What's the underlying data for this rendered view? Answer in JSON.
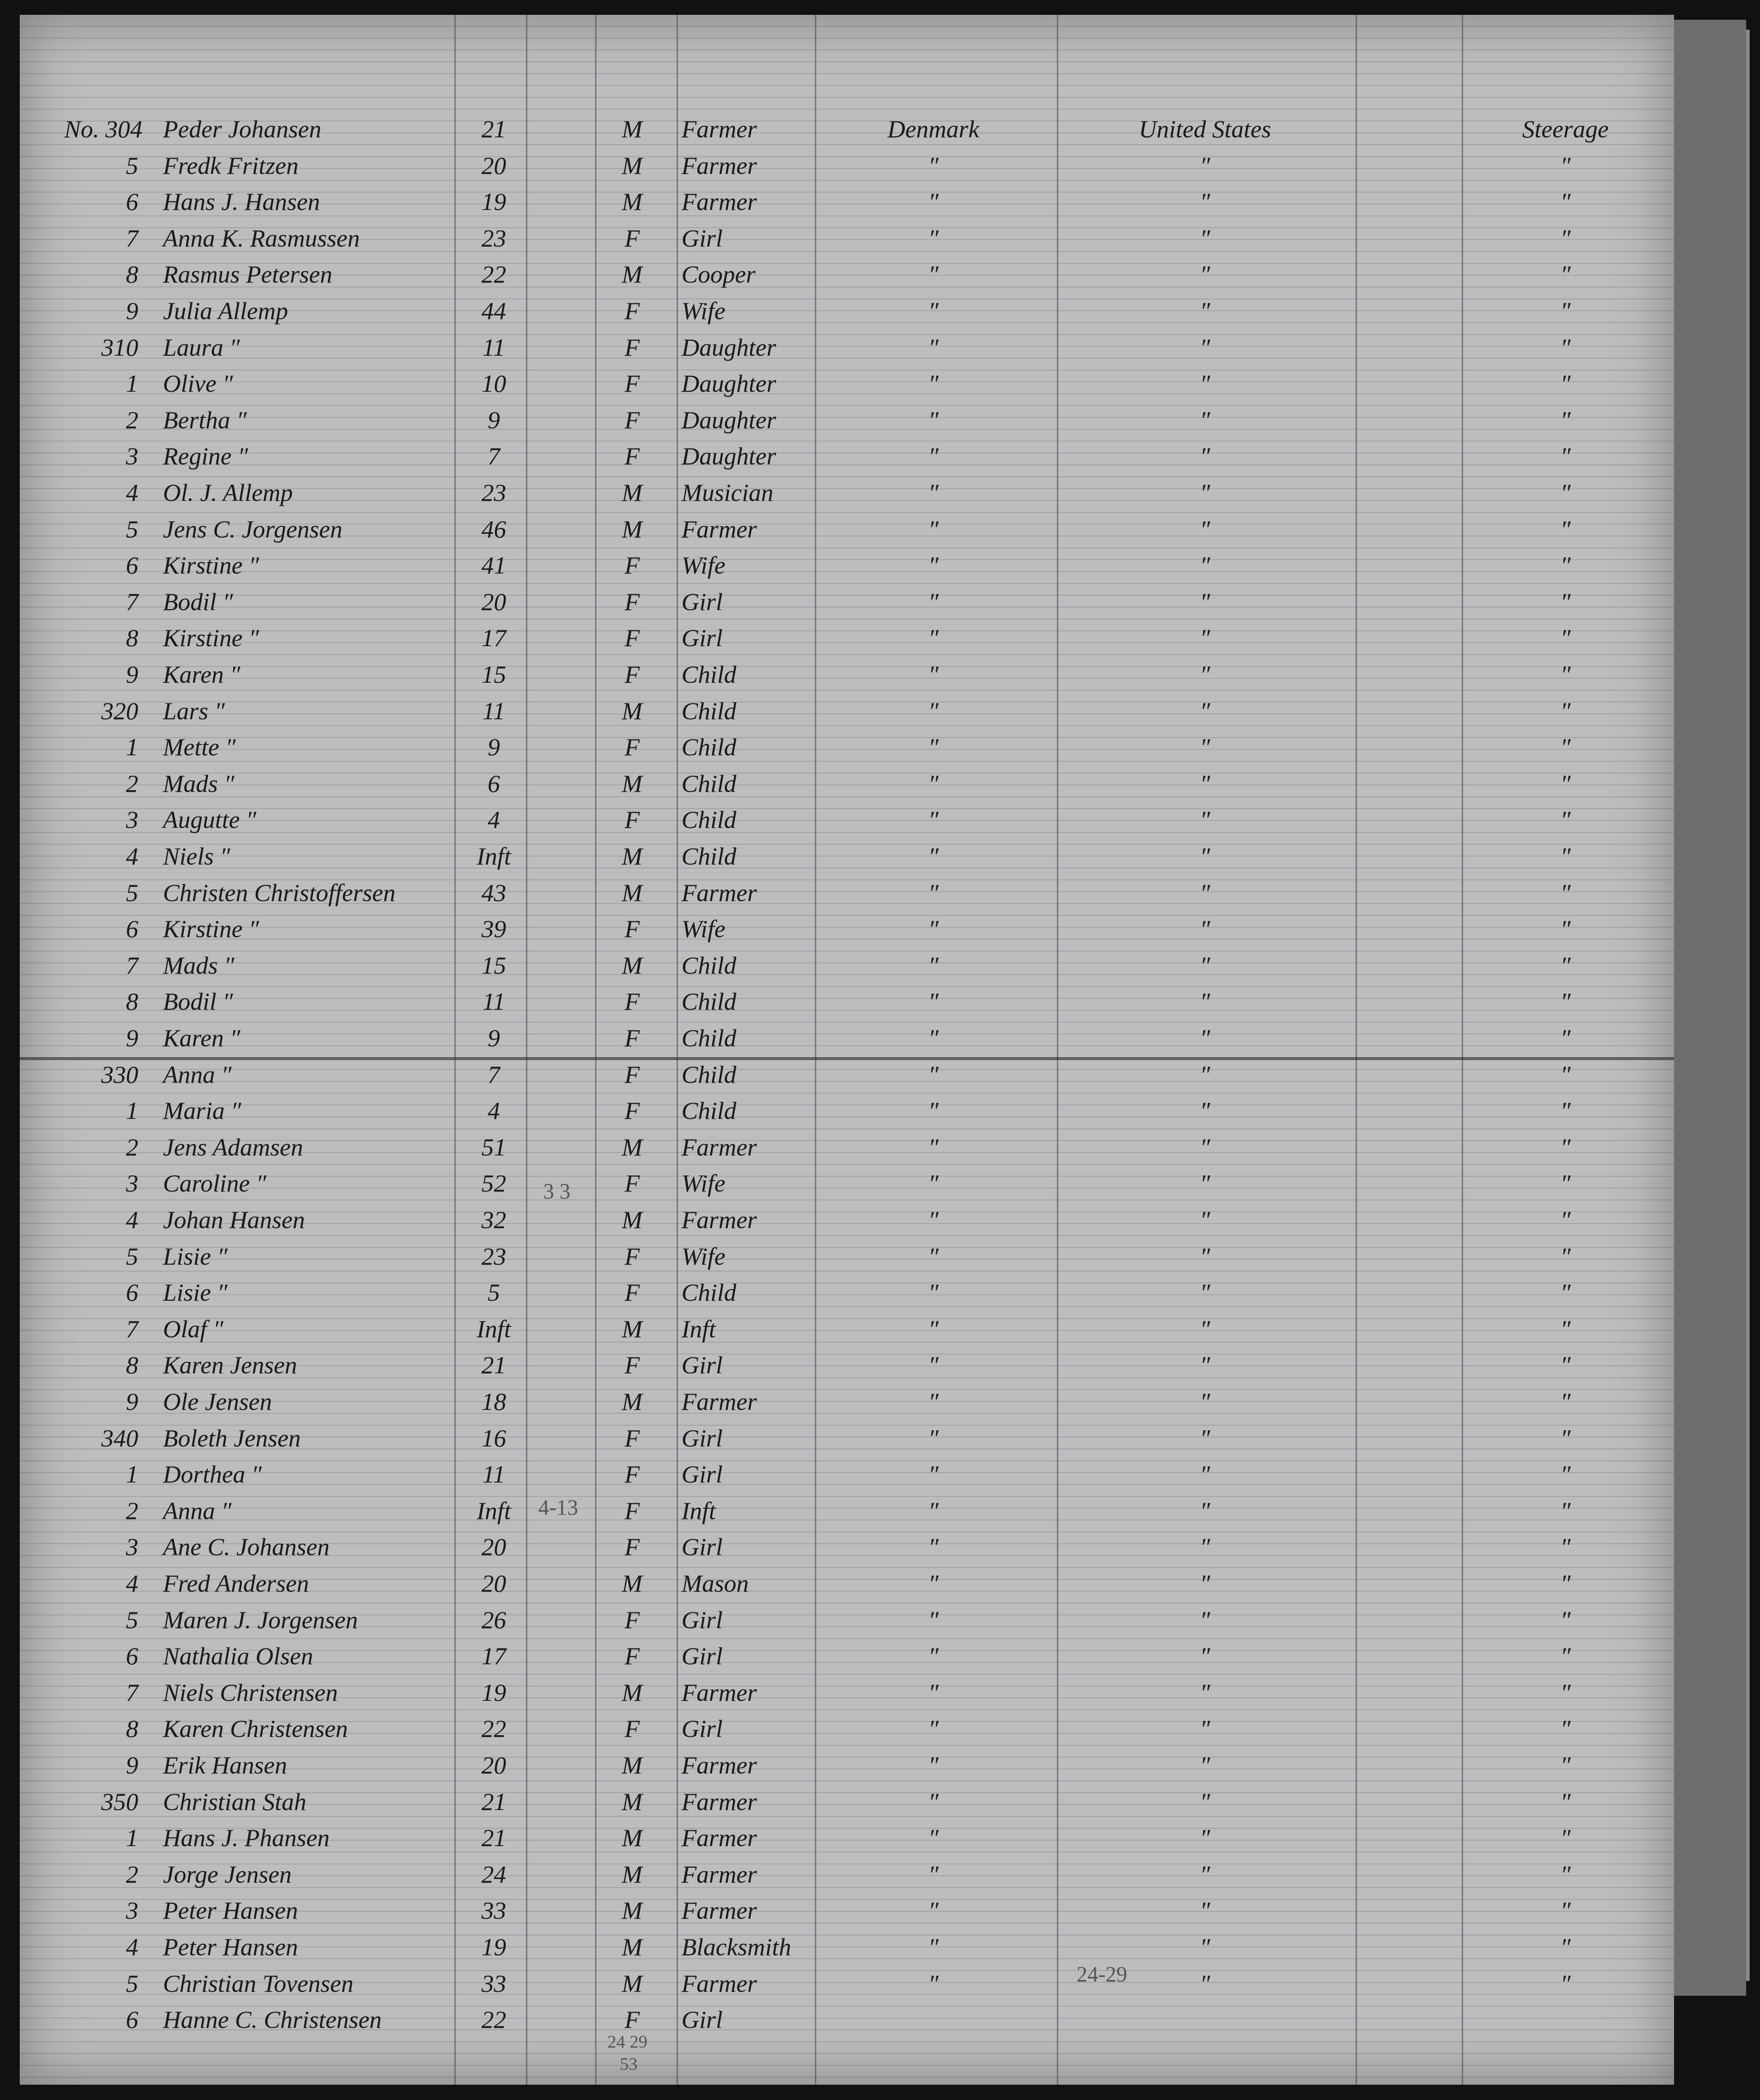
{
  "manifest": {
    "rows": [
      {
        "no": "No. 304",
        "name": "Peder Johansen",
        "age": "21",
        "sex": "M",
        "occupation": "Farmer",
        "country": "Denmark",
        "destination": "United States",
        "passage": "Steerage"
      },
      {
        "no": "5",
        "name": "Fredk Fritzen",
        "age": "20",
        "sex": "M",
        "occupation": "Farmer",
        "country": "″",
        "destination": "″",
        "passage": "″"
      },
      {
        "no": "6",
        "name": "Hans J. Hansen",
        "age": "19",
        "sex": "M",
        "occupation": "Farmer",
        "country": "″",
        "destination": "″",
        "passage": "″"
      },
      {
        "no": "7",
        "name": "Anna K. Rasmussen",
        "age": "23",
        "sex": "F",
        "occupation": "Girl",
        "country": "″",
        "destination": "″",
        "passage": "″"
      },
      {
        "no": "8",
        "name": "Rasmus Petersen",
        "age": "22",
        "sex": "M",
        "occupation": "Cooper",
        "country": "″",
        "destination": "″",
        "passage": "″"
      },
      {
        "no": "9",
        "name": "Julia Allemp",
        "age": "44",
        "sex": "F",
        "occupation": "Wife",
        "country": "″",
        "destination": "″",
        "passage": "″"
      },
      {
        "no": "310",
        "name": "Laura ″",
        "age": "11",
        "sex": "F",
        "occupation": "Daughter",
        "country": "″",
        "destination": "″",
        "passage": "″"
      },
      {
        "no": "1",
        "name": "Olive ″",
        "age": "10",
        "sex": "F",
        "occupation": "Daughter",
        "country": "″",
        "destination": "″",
        "passage": "″"
      },
      {
        "no": "2",
        "name": "Bertha ″",
        "age": "9",
        "sex": "F",
        "occupation": "Daughter",
        "country": "″",
        "destination": "″",
        "passage": "″"
      },
      {
        "no": "3",
        "name": "Regine ″",
        "age": "7",
        "sex": "F",
        "occupation": "Daughter",
        "country": "″",
        "destination": "″",
        "passage": "″"
      },
      {
        "no": "4",
        "name": "Ol. J. Allemp",
        "age": "23",
        "sex": "M",
        "occupation": "Musician",
        "country": "″",
        "destination": "″",
        "passage": "″"
      },
      {
        "no": "5",
        "name": "Jens C. Jorgensen",
        "age": "46",
        "sex": "M",
        "occupation": "Farmer",
        "country": "″",
        "destination": "″",
        "passage": "″"
      },
      {
        "no": "6",
        "name": "Kirstine ″",
        "age": "41",
        "sex": "F",
        "occupation": "Wife",
        "country": "″",
        "destination": "″",
        "passage": "″"
      },
      {
        "no": "7",
        "name": "Bodil ″",
        "age": "20",
        "sex": "F",
        "occupation": "Girl",
        "country": "″",
        "destination": "″",
        "passage": "″"
      },
      {
        "no": "8",
        "name": "Kirstine ″",
        "age": "17",
        "sex": "F",
        "occupation": "Girl",
        "country": "″",
        "destination": "″",
        "passage": "″"
      },
      {
        "no": "9",
        "name": "Karen ″",
        "age": "15",
        "sex": "F",
        "occupation": "Child",
        "country": "″",
        "destination": "″",
        "passage": "″"
      },
      {
        "no": "320",
        "name": "Lars ″",
        "age": "11",
        "sex": "M",
        "occupation": "Child",
        "country": "″",
        "destination": "″",
        "passage": "″"
      },
      {
        "no": "1",
        "name": "Mette ″",
        "age": "9",
        "sex": "F",
        "occupation": "Child",
        "country": "″",
        "destination": "″",
        "passage": "″"
      },
      {
        "no": "2",
        "name": "Mads ″",
        "age": "6",
        "sex": "M",
        "occupation": "Child",
        "country": "″",
        "destination": "″",
        "passage": "″"
      },
      {
        "no": "3",
        "name": "Augutte ″",
        "age": "4",
        "sex": "F",
        "occupation": "Child",
        "country": "″",
        "destination": "″",
        "passage": "″"
      },
      {
        "no": "4",
        "name": "Niels ″",
        "age": "Inft",
        "sex": "M",
        "occupation": "Child",
        "country": "″",
        "destination": "″",
        "passage": "″"
      },
      {
        "no": "5",
        "name": "Christen Christoffersen",
        "age": "43",
        "sex": "M",
        "occupation": "Farmer",
        "country": "″",
        "destination": "″",
        "passage": "″"
      },
      {
        "no": "6",
        "name": "Kirstine ″",
        "age": "39",
        "sex": "F",
        "occupation": "Wife",
        "country": "″",
        "destination": "″",
        "passage": "″"
      },
      {
        "no": "7",
        "name": "Mads ″",
        "age": "15",
        "sex": "M",
        "occupation": "Child",
        "country": "″",
        "destination": "″",
        "passage": "″"
      },
      {
        "no": "8",
        "name": "Bodil ″",
        "age": "11",
        "sex": "F",
        "occupation": "Child",
        "country": "″",
        "destination": "″",
        "passage": "″"
      },
      {
        "no": "9",
        "name": "Karen ″",
        "age": "9",
        "sex": "F",
        "occupation": "Child",
        "country": "″",
        "destination": "″",
        "passage": "″"
      },
      {
        "no": "330",
        "name": "Anna ″",
        "age": "7",
        "sex": "F",
        "occupation": "Child",
        "country": "″",
        "destination": "″",
        "passage": "″"
      },
      {
        "no": "1",
        "name": "Maria ″",
        "age": "4",
        "sex": "F",
        "occupation": "Child",
        "country": "″",
        "destination": "″",
        "passage": "″"
      },
      {
        "no": "2",
        "name": "Jens Adamsen",
        "age": "51",
        "sex": "M",
        "occupation": "Farmer",
        "country": "″",
        "destination": "″",
        "passage": "″"
      },
      {
        "no": "3",
        "name": "Caroline ″",
        "age": "52",
        "sex": "F",
        "occupation": "Wife",
        "country": "″",
        "destination": "″",
        "passage": "″"
      },
      {
        "no": "4",
        "name": "Johan Hansen",
        "age": "32",
        "sex": "M",
        "occupation": "Farmer",
        "country": "″",
        "destination": "″",
        "passage": "″"
      },
      {
        "no": "5",
        "name": "Lisie ″",
        "age": "23",
        "sex": "F",
        "occupation": "Wife",
        "country": "″",
        "destination": "″",
        "passage": "″"
      },
      {
        "no": "6",
        "name": "Lisie ″",
        "age": "5",
        "sex": "F",
        "occupation": "Child",
        "country": "″",
        "destination": "″",
        "passage": "″"
      },
      {
        "no": "7",
        "name": "Olaf ″",
        "age": "Inft",
        "sex": "M",
        "occupation": "Inft",
        "country": "″",
        "destination": "″",
        "passage": "″"
      },
      {
        "no": "8",
        "name": "Karen Jensen",
        "age": "21",
        "sex": "F",
        "occupation": "Girl",
        "country": "″",
        "destination": "″",
        "passage": "″"
      },
      {
        "no": "9",
        "name": "Ole Jensen",
        "age": "18",
        "sex": "M",
        "occupation": "Farmer",
        "country": "″",
        "destination": "″",
        "passage": "″"
      },
      {
        "no": "340",
        "name": "Boleth Jensen",
        "age": "16",
        "sex": "F",
        "occupation": "Girl",
        "country": "″",
        "destination": "″",
        "passage": "″"
      },
      {
        "no": "1",
        "name": "Dorthea ″",
        "age": "11",
        "sex": "F",
        "occupation": "Girl",
        "country": "″",
        "destination": "″",
        "passage": "″"
      },
      {
        "no": "2",
        "name": "Anna ″",
        "age": "Inft",
        "sex": "F",
        "occupation": "Inft",
        "country": "″",
        "destination": "″",
        "passage": "″"
      },
      {
        "no": "3",
        "name": "Ane C. Johansen",
        "age": "20",
        "sex": "F",
        "occupation": "Girl",
        "country": "″",
        "destination": "″",
        "passage": "″"
      },
      {
        "no": "4",
        "name": "Fred Andersen",
        "age": "20",
        "sex": "M",
        "occupation": "Mason",
        "country": "″",
        "destination": "″",
        "passage": "″"
      },
      {
        "no": "5",
        "name": "Maren J. Jorgensen",
        "age": "26",
        "sex": "F",
        "occupation": "Girl",
        "country": "″",
        "destination": "″",
        "passage": "″"
      },
      {
        "no": "6",
        "name": "Nathalia Olsen",
        "age": "17",
        "sex": "F",
        "occupation": "Girl",
        "country": "″",
        "destination": "″",
        "passage": "″"
      },
      {
        "no": "7",
        "name": "Niels Christensen",
        "age": "19",
        "sex": "M",
        "occupation": "Farmer",
        "country": "″",
        "destination": "″",
        "passage": "″"
      },
      {
        "no": "8",
        "name": "Karen Christensen",
        "age": "22",
        "sex": "F",
        "occupation": "Girl",
        "country": "″",
        "destination": "″",
        "passage": "″"
      },
      {
        "no": "9",
        "name": "Erik Hansen",
        "age": "20",
        "sex": "M",
        "occupation": "Farmer",
        "country": "″",
        "destination": "″",
        "passage": "″"
      },
      {
        "no": "350",
        "name": "Christian Stah",
        "age": "21",
        "sex": "M",
        "occupation": "Farmer",
        "country": "″",
        "destination": "″",
        "passage": "″"
      },
      {
        "no": "1",
        "name": "Hans J. Phansen",
        "age": "21",
        "sex": "M",
        "occupation": "Farmer",
        "country": "″",
        "destination": "″",
        "passage": "″"
      },
      {
        "no": "2",
        "name": "Jorge Jensen",
        "age": "24",
        "sex": "M",
        "occupation": "Farmer",
        "country": "″",
        "destination": "″",
        "passage": "″"
      },
      {
        "no": "3",
        "name": "Peter Hansen",
        "age": "33",
        "sex": "M",
        "occupation": "Farmer",
        "country": "″",
        "destination": "″",
        "passage": "″"
      },
      {
        "no": "4",
        "name": "Peter Hansen",
        "age": "19",
        "sex": "M",
        "occupation": "Blacksmith",
        "country": "″",
        "destination": "″",
        "passage": "″"
      },
      {
        "no": "5",
        "name": "Christian Tovensen",
        "age": "33",
        "sex": "M",
        "occupation": "Farmer",
        "country": "″",
        "destination": "″",
        "passage": "″"
      },
      {
        "no": "6",
        "name": "Hanne C. Christensen",
        "age": "22",
        "sex": "F",
        "occupation": "Girl",
        "country": "",
        "destination": "",
        "passage": ""
      }
    ],
    "annotations": {
      "note_a": "3 3",
      "note_b": "4-13",
      "note_c": "24-29",
      "note_d": "24 29",
      "note_e": "53"
    }
  }
}
